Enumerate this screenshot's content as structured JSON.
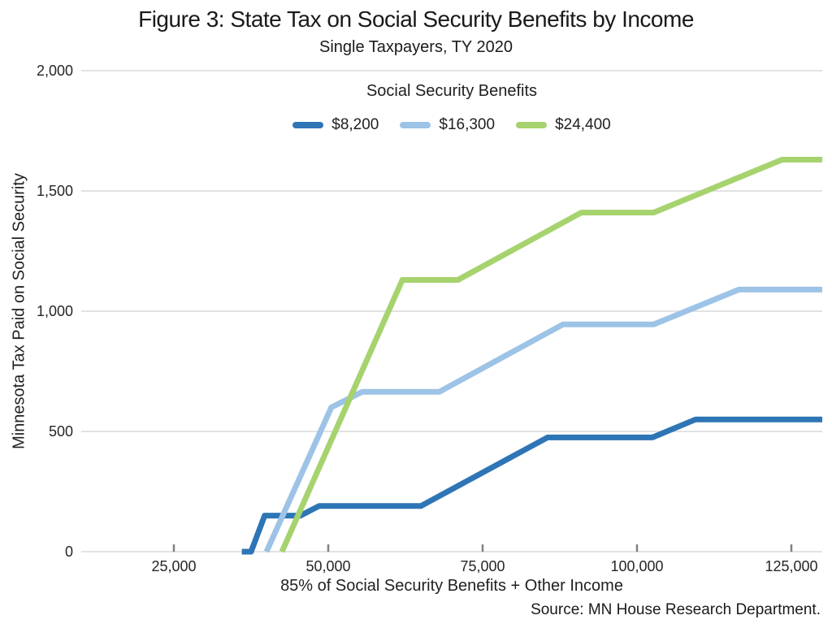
{
  "chart_data": {
    "type": "line",
    "title": "Figure 3: State Tax on Social Security Benefits by Income",
    "subtitle": "Single Taxpayers, TY 2020",
    "legend_title": "Social Security Benefits",
    "legend_position": "top-center",
    "xlabel": "85% of Social Security Benefits + Other Income",
    "ylabel": "Minnesota Tax Paid on Social Security",
    "source": "Source: MN House Research Department.",
    "xlim": [
      10000,
      130000
    ],
    "ylim": [
      0,
      2000
    ],
    "x_ticks": [
      25000,
      50000,
      75000,
      100000,
      125000
    ],
    "x_tick_labels": [
      "25,000",
      "50,000",
      "75,000",
      "100,000",
      "125,000"
    ],
    "y_ticks": [
      0,
      500,
      1000,
      1500,
      2000
    ],
    "y_tick_labels": [
      "0",
      "500",
      "1,000",
      "1,500",
      "2,000"
    ],
    "grid": "horizontal-only",
    "grid_color": "#d9d9d9",
    "tick_color": "#808080",
    "line_width": 7,
    "series": [
      {
        "name": "$8,200",
        "color": "#2E75B6",
        "points": [
          [
            36000,
            0
          ],
          [
            37500,
            0
          ],
          [
            39700,
            150
          ],
          [
            45500,
            150
          ],
          [
            48500,
            190
          ],
          [
            65000,
            190
          ],
          [
            85500,
            475
          ],
          [
            102500,
            475
          ],
          [
            109500,
            550
          ],
          [
            130000,
            550
          ]
        ]
      },
      {
        "name": "$16,300",
        "color": "#9DC3E6",
        "points": [
          [
            40000,
            0
          ],
          [
            50500,
            600
          ],
          [
            55500,
            665
          ],
          [
            68000,
            665
          ],
          [
            88000,
            945
          ],
          [
            102700,
            945
          ],
          [
            116500,
            1090
          ],
          [
            130000,
            1090
          ]
        ]
      },
      {
        "name": "$24,400",
        "color": "#A6D36E",
        "points": [
          [
            42500,
            0
          ],
          [
            62000,
            1130
          ],
          [
            71000,
            1130
          ],
          [
            91000,
            1410
          ],
          [
            102700,
            1410
          ],
          [
            123500,
            1630
          ],
          [
            130000,
            1630
          ]
        ]
      }
    ]
  }
}
